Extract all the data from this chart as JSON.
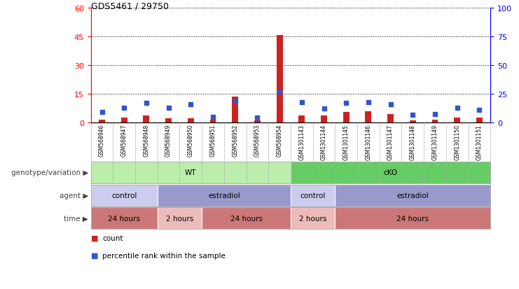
{
  "title": "GDS5461 / 29750",
  "samples": [
    "GSM568946",
    "GSM568947",
    "GSM568948",
    "GSM568949",
    "GSM568950",
    "GSM568951",
    "GSM568952",
    "GSM568953",
    "GSM568954",
    "GSM1301143",
    "GSM1301144",
    "GSM1301145",
    "GSM1301146",
    "GSM1301147",
    "GSM1301148",
    "GSM1301149",
    "GSM1301150",
    "GSM1301151"
  ],
  "counts": [
    1.5,
    2.5,
    3.5,
    2.0,
    2.0,
    1.5,
    13.5,
    1.0,
    46.0,
    3.5,
    3.5,
    5.5,
    6.0,
    4.5,
    1.0,
    1.5,
    2.5,
    2.5
  ],
  "percentile_ranks": [
    9.0,
    13.0,
    17.0,
    13.0,
    16.0,
    5.0,
    19.0,
    4.0,
    27.0,
    18.0,
    12.0,
    17.0,
    17.5,
    16.0,
    7.0,
    7.5,
    13.0,
    11.0
  ],
  "left_ylim": [
    0,
    60
  ],
  "left_yticks": [
    0,
    15,
    30,
    45,
    60
  ],
  "right_ylim": [
    0,
    100
  ],
  "right_yticks": [
    0,
    25,
    50,
    75,
    100
  ],
  "bar_color_red": "#cc2222",
  "bar_color_blue": "#3355cc",
  "grid_color": "#000000",
  "bg_color": "#ffffff",
  "plot_bg": "#ffffff",
  "genotype_groups": [
    {
      "label": "WT",
      "start": 0,
      "end": 9,
      "color": "#bbeeaa"
    },
    {
      "label": "cKO",
      "start": 9,
      "end": 18,
      "color": "#66cc66"
    }
  ],
  "agent_groups": [
    {
      "label": "control",
      "start": 0,
      "end": 3,
      "color": "#ccccee"
    },
    {
      "label": "estradiol",
      "start": 3,
      "end": 9,
      "color": "#9999cc"
    },
    {
      "label": "control",
      "start": 9,
      "end": 11,
      "color": "#ccccee"
    },
    {
      "label": "estradiol",
      "start": 11,
      "end": 18,
      "color": "#9999cc"
    }
  ],
  "time_groups": [
    {
      "label": "24 hours",
      "start": 0,
      "end": 3,
      "color": "#cc7777"
    },
    {
      "label": "2 hours",
      "start": 3,
      "end": 5,
      "color": "#eebbbb"
    },
    {
      "label": "24 hours",
      "start": 5,
      "end": 9,
      "color": "#cc7777"
    },
    {
      "label": "2 hours",
      "start": 9,
      "end": 11,
      "color": "#eebbbb"
    },
    {
      "label": "24 hours",
      "start": 11,
      "end": 18,
      "color": "#cc7777"
    }
  ],
  "row_labels": [
    "genotype/variation",
    "agent",
    "time"
  ],
  "legend_items": [
    {
      "label": "count",
      "color": "#cc2222"
    },
    {
      "label": "percentile rank within the sample",
      "color": "#3355cc"
    }
  ]
}
